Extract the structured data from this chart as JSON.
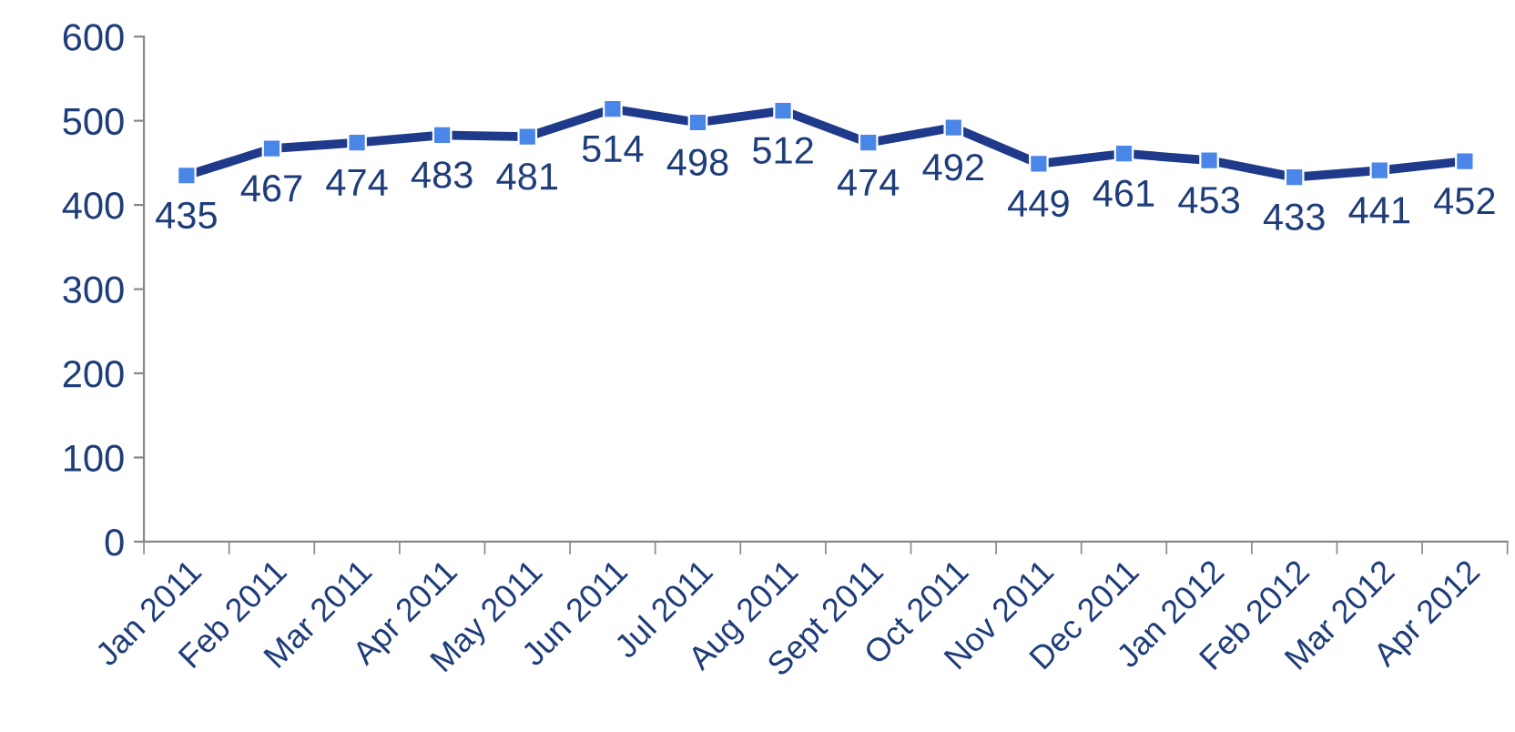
{
  "chart_data": {
    "type": "line",
    "categories": [
      "Jan 2011",
      "Feb 2011",
      "Mar 2011",
      "Apr 2011",
      "May 2011",
      "Jun 2011",
      "Jul 2011",
      "Aug 2011",
      "Sept 2011",
      "Oct 2011",
      "Nov 2011",
      "Dec 2011",
      "Jan 2012",
      "Feb 2012",
      "Mar 2012",
      "Apr 2012"
    ],
    "series": [
      {
        "color": "#1f3a8a",
        "values": [
          435,
          467,
          474,
          483,
          481,
          514,
          498,
          512,
          474,
          492,
          449,
          461,
          453,
          433,
          441,
          452
        ]
      }
    ],
    "ylim": [
      0,
      600
    ],
    "yticks": [
      0,
      100,
      200,
      300,
      400,
      500,
      600
    ],
    "marker": "square",
    "line_style": "solid",
    "data_labels": true,
    "grid": false,
    "legend": false
  }
}
